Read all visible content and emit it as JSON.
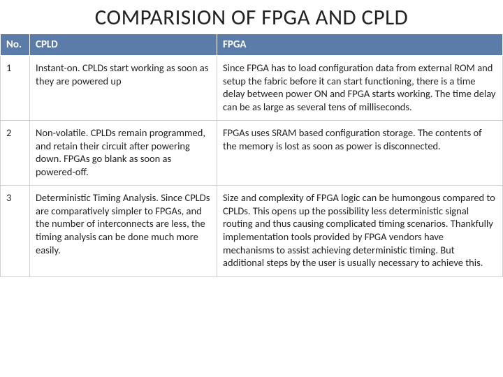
{
  "title": "COMPARISION OF FPGA AND CPLD",
  "header_bg": "#5b7ca8",
  "header_fg": "#ffffff",
  "columns": [
    "No.",
    "CPLD",
    "FPGA"
  ],
  "rows": [
    {
      "no": "1",
      "cpld": "Instant-on. CPLDs start working as soon as they are powered up",
      "fpga": "Since FPGA has to load configuration data from external ROM and setup the fabric before it can start functioning, there is a time delay between power ON and FPGA starts working. The time delay can be as large as several tens of milliseconds."
    },
    {
      "no": "2",
      "cpld": "Non-volatile. CPLDs remain programmed, and retain their circuit after powering down. FPGAs go blank as soon as powered-off.",
      "fpga": "FPGAs uses SRAM based configuration storage. The contents of the memory is lost as soon as power is disconnected."
    },
    {
      "no": "3",
      "cpld": "Deterministic Timing Analysis. Since CPLDs are comparatively simpler to FPGAs, and the number of interconnects are less, the timing analysis can be done much more easily.",
      "fpga": "Size and complexity of FPGA logic can be humongous compared to CPLDs. This opens up the possibility less deterministic signal routing and thus causing complicated timing scenarios. Thankfully implementation tools provided by FPGA vendors have mechanisms to assist achieving deterministic timing. But additional steps by the user is usually necessary to achieve this."
    }
  ]
}
